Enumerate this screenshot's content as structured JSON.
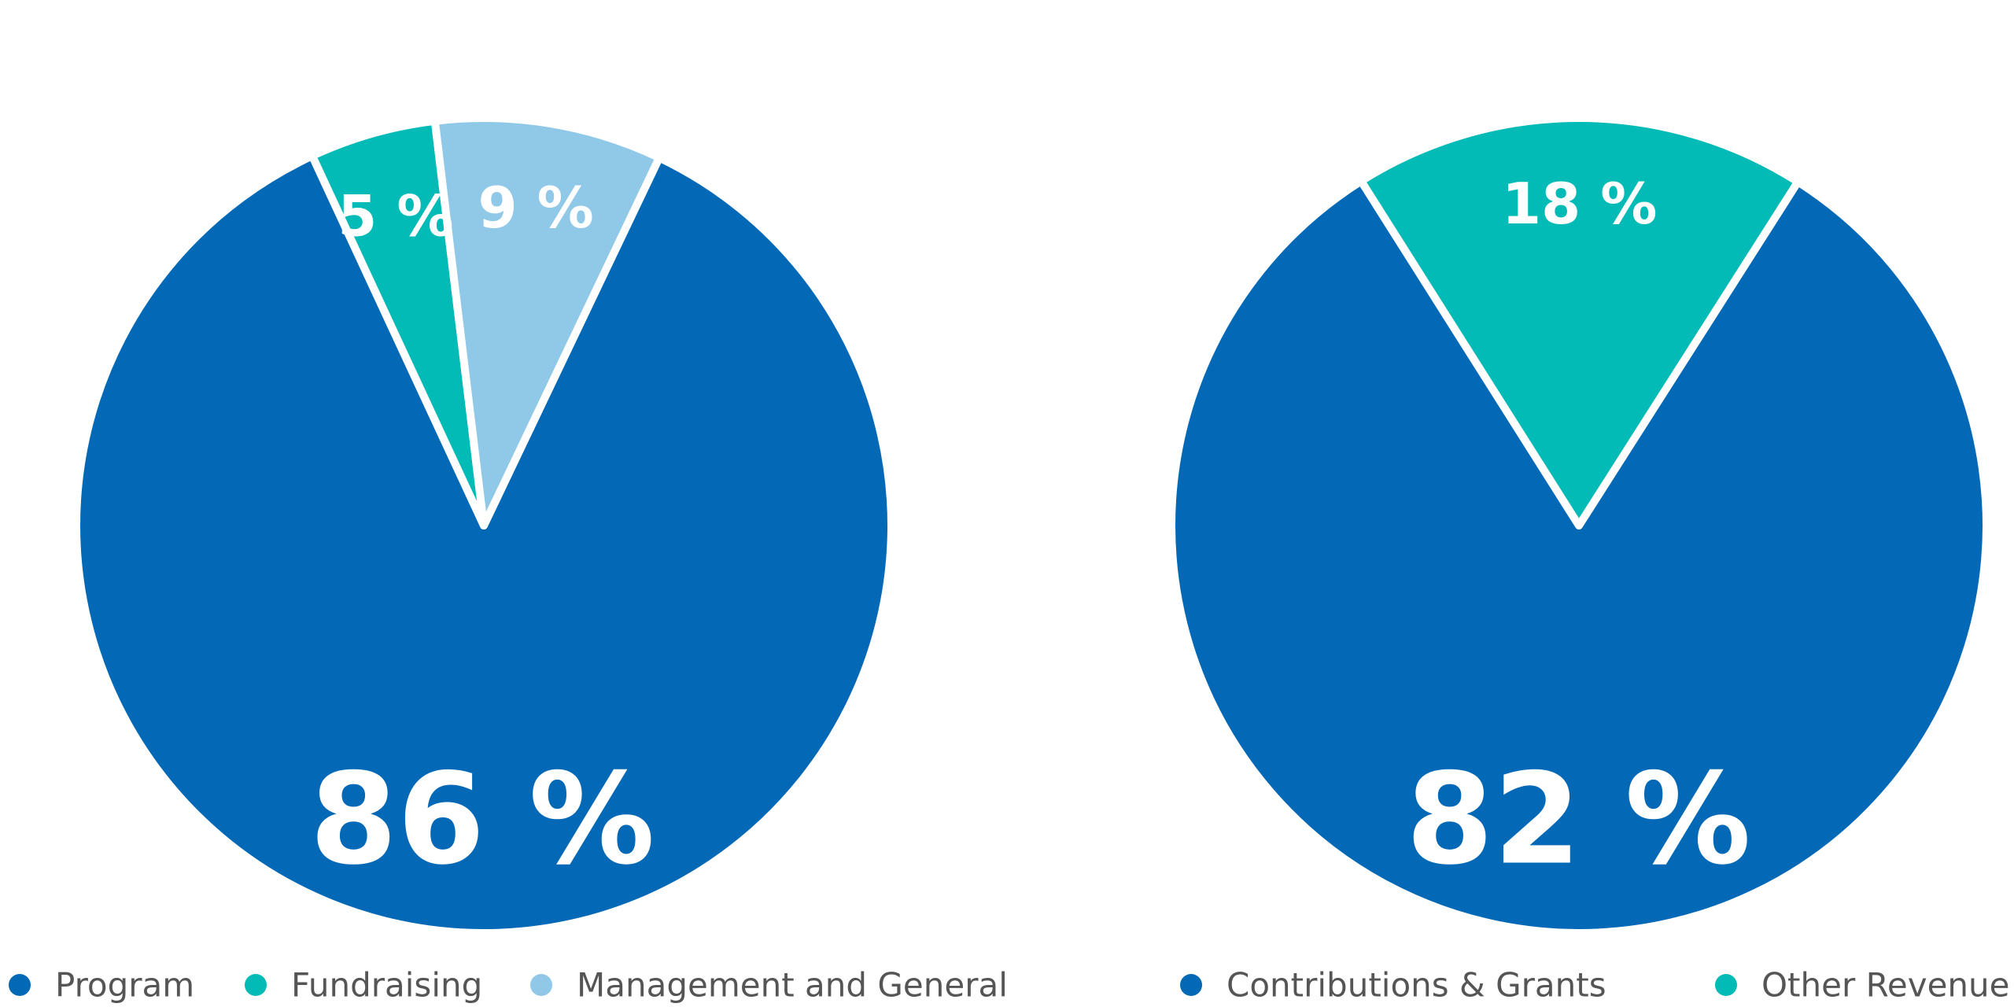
{
  "chart_data": [
    {
      "type": "pie",
      "title": "",
      "categories": [
        "Program",
        "Fundraising",
        "Management and General"
      ],
      "values": [
        86,
        5,
        9
      ],
      "labels": [
        "86 %",
        "5 %",
        "9 %"
      ],
      "colors": [
        "#0369b6",
        "#03bbb6",
        "#90c8e8"
      ],
      "legend": "bottom"
    },
    {
      "type": "pie",
      "title": "",
      "categories": [
        "Contributions & Grants",
        "Other Revenue"
      ],
      "values": [
        82,
        18
      ],
      "labels": [
        "82 %",
        "18 %"
      ],
      "colors": [
        "#0369b6",
        "#03bbb6"
      ],
      "legend": "bottom"
    }
  ]
}
